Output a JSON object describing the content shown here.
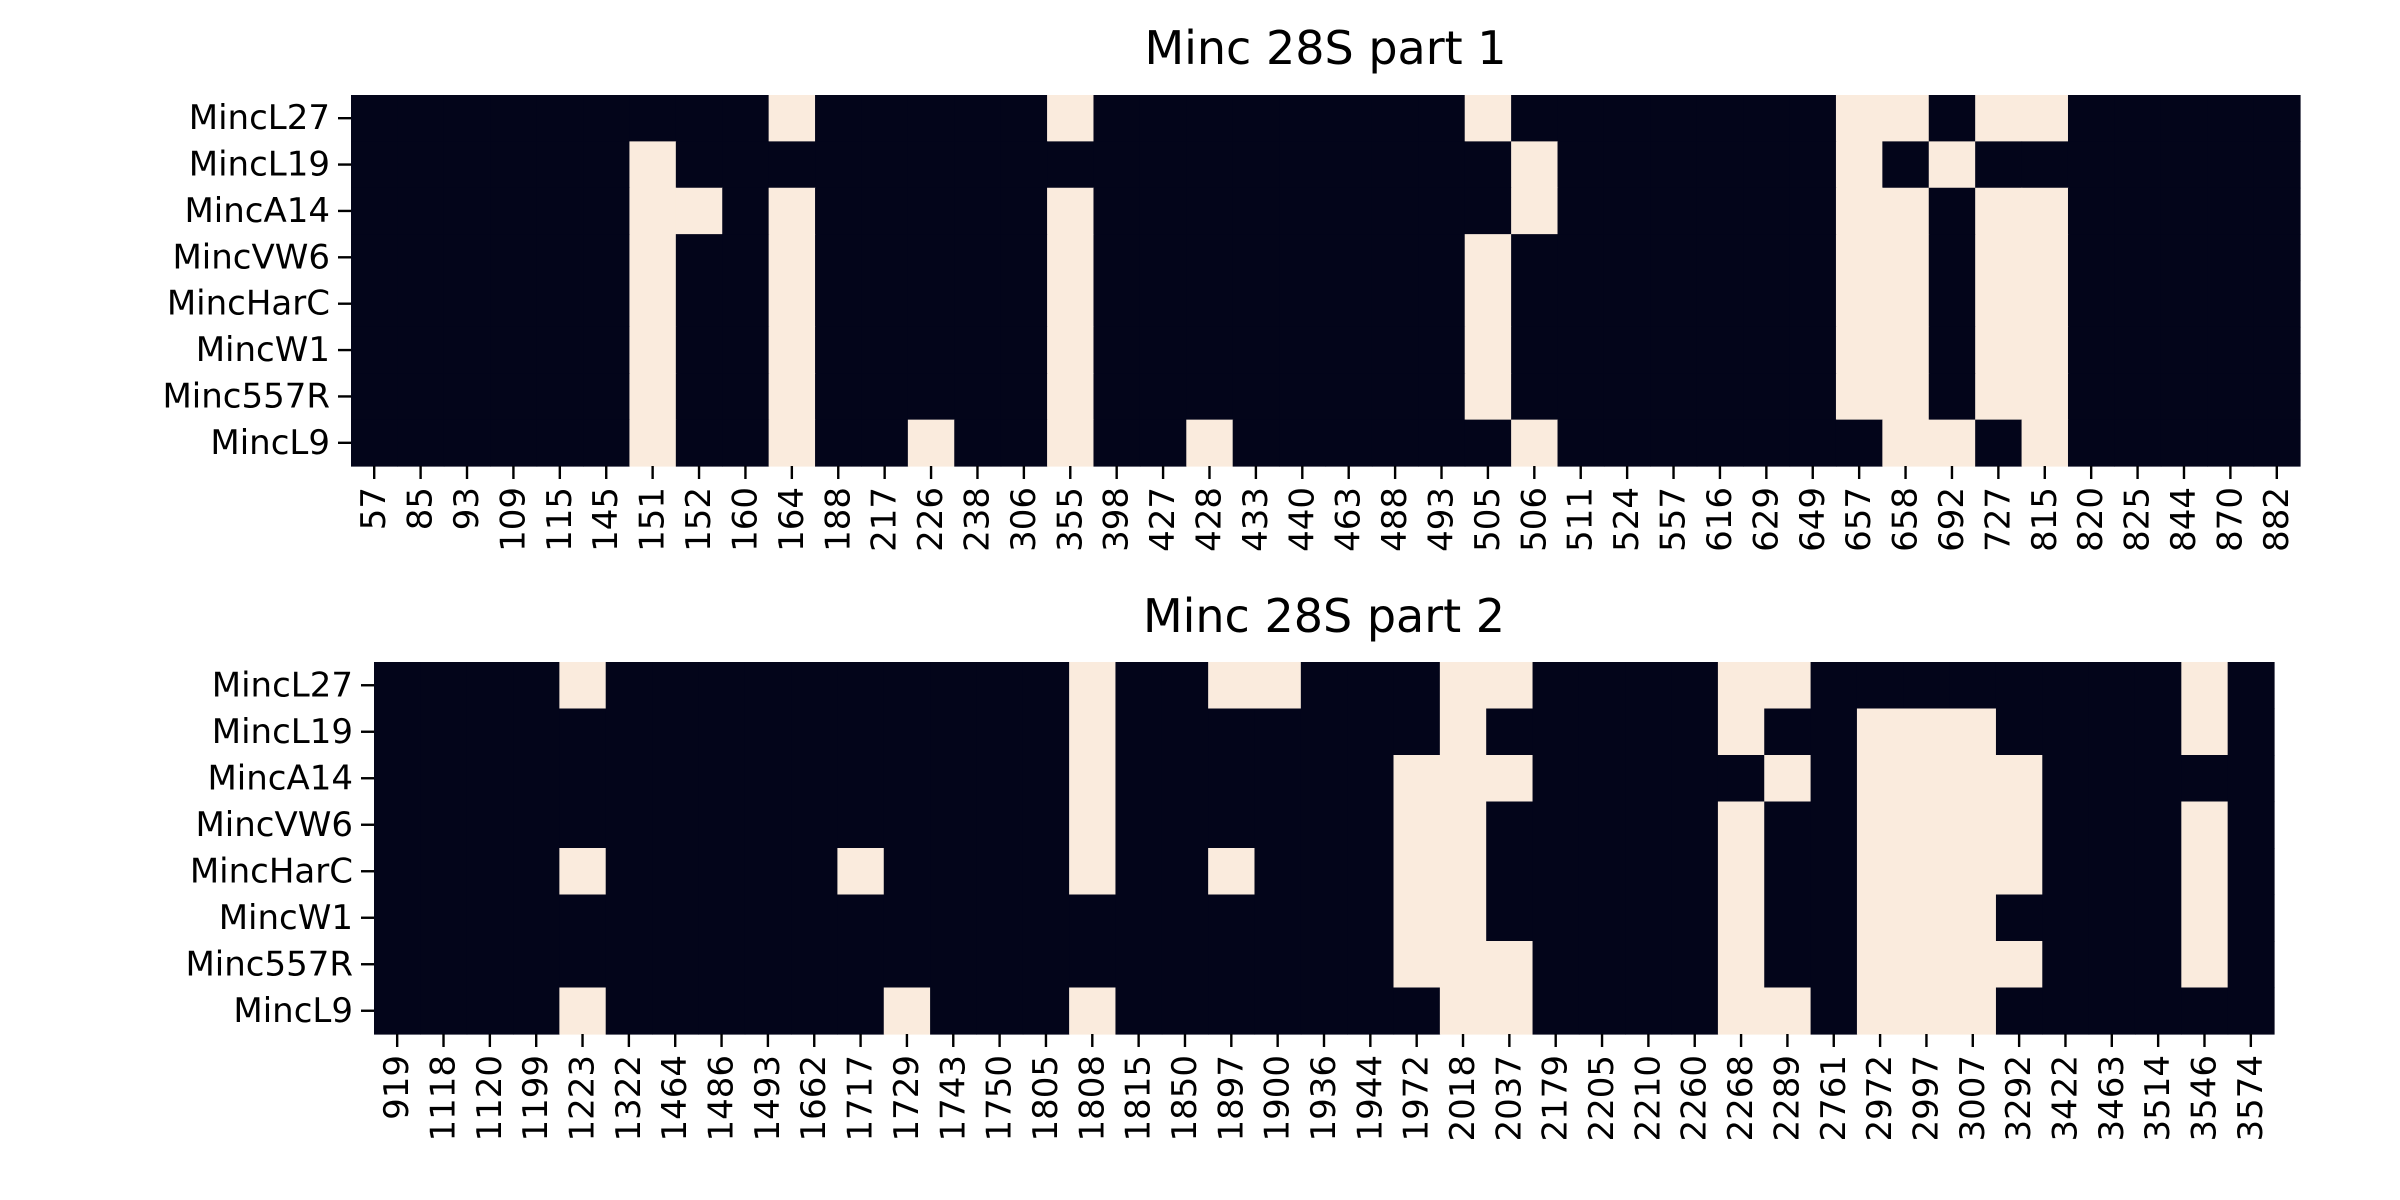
{
  "chart_data": [
    {
      "type": "heatmap",
      "title": "Minc 28S part 1",
      "rows": [
        "MincL27",
        "MincL19",
        "MincA14",
        "MincVW6",
        "MincHarC",
        "MincW1",
        "Minc557R",
        "MincL9"
      ],
      "columns": [
        "57",
        "85",
        "93",
        "109",
        "115",
        "145",
        "151",
        "152",
        "160",
        "164",
        "188",
        "217",
        "226",
        "238",
        "306",
        "355",
        "398",
        "427",
        "428",
        "433",
        "440",
        "463",
        "488",
        "493",
        "505",
        "506",
        "511",
        "524",
        "557",
        "616",
        "629",
        "649",
        "657",
        "658",
        "692",
        "727",
        "815",
        "820",
        "825",
        "844",
        "870",
        "882"
      ],
      "values": [
        [
          0,
          0,
          0,
          0,
          0,
          0,
          0,
          0,
          0,
          1,
          0,
          0,
          0,
          0,
          0,
          1,
          0,
          0,
          0,
          0,
          0,
          0,
          0,
          0,
          1,
          0,
          0,
          0,
          0,
          0,
          0,
          0,
          1,
          1,
          0,
          1,
          1,
          0,
          0,
          0,
          0,
          0
        ],
        [
          0,
          0,
          0,
          0,
          0,
          0,
          1,
          0,
          0,
          0,
          0,
          0,
          0,
          0,
          0,
          0,
          0,
          0,
          0,
          0,
          0,
          0,
          0,
          0,
          0,
          1,
          0,
          0,
          0,
          0,
          0,
          0,
          1,
          0,
          1,
          0,
          0,
          0,
          0,
          0,
          0,
          0
        ],
        [
          0,
          0,
          0,
          0,
          0,
          0,
          1,
          1,
          0,
          1,
          0,
          0,
          0,
          0,
          0,
          1,
          0,
          0,
          0,
          0,
          0,
          0,
          0,
          0,
          0,
          1,
          0,
          0,
          0,
          0,
          0,
          0,
          1,
          1,
          0,
          1,
          1,
          0,
          0,
          0,
          0,
          0
        ],
        [
          0,
          0,
          0,
          0,
          0,
          0,
          1,
          0,
          0,
          1,
          0,
          0,
          0,
          0,
          0,
          1,
          0,
          0,
          0,
          0,
          0,
          0,
          0,
          0,
          1,
          0,
          0,
          0,
          0,
          0,
          0,
          0,
          1,
          1,
          0,
          1,
          1,
          0,
          0,
          0,
          0,
          0
        ],
        [
          0,
          0,
          0,
          0,
          0,
          0,
          1,
          0,
          0,
          1,
          0,
          0,
          0,
          0,
          0,
          1,
          0,
          0,
          0,
          0,
          0,
          0,
          0,
          0,
          1,
          0,
          0,
          0,
          0,
          0,
          0,
          0,
          1,
          1,
          0,
          1,
          1,
          0,
          0,
          0,
          0,
          0
        ],
        [
          0,
          0,
          0,
          0,
          0,
          0,
          1,
          0,
          0,
          1,
          0,
          0,
          0,
          0,
          0,
          1,
          0,
          0,
          0,
          0,
          0,
          0,
          0,
          0,
          1,
          0,
          0,
          0,
          0,
          0,
          0,
          0,
          1,
          1,
          0,
          1,
          1,
          0,
          0,
          0,
          0,
          0
        ],
        [
          0,
          0,
          0,
          0,
          0,
          0,
          1,
          0,
          0,
          1,
          0,
          0,
          0,
          0,
          0,
          1,
          0,
          0,
          0,
          0,
          0,
          0,
          0,
          0,
          1,
          0,
          0,
          0,
          0,
          0,
          0,
          0,
          1,
          1,
          0,
          1,
          1,
          0,
          0,
          0,
          0,
          0
        ],
        [
          0,
          0,
          0,
          0,
          0,
          0,
          1,
          0,
          0,
          1,
          0,
          0,
          1,
          0,
          0,
          1,
          0,
          0,
          1,
          0,
          0,
          0,
          0,
          0,
          0,
          1,
          0,
          0,
          0,
          0,
          0,
          0,
          0,
          1,
          1,
          0,
          1,
          0,
          0,
          0,
          0,
          0
        ]
      ]
    },
    {
      "type": "heatmap",
      "title": "Minc 28S part 2",
      "rows": [
        "MincL27",
        "MincL19",
        "MincA14",
        "MincVW6",
        "MincHarC",
        "MincW1",
        "Minc557R",
        "MincL9"
      ],
      "columns": [
        "919",
        "1118",
        "1120",
        "1199",
        "1223",
        "1322",
        "1464",
        "1486",
        "1493",
        "1662",
        "1717",
        "1729",
        "1743",
        "1750",
        "1805",
        "1808",
        "1815",
        "1850",
        "1897",
        "1900",
        "1936",
        "1944",
        "1972",
        "2018",
        "2037",
        "2179",
        "2205",
        "2210",
        "2260",
        "2268",
        "2289",
        "2761",
        "2972",
        "2997",
        "3007",
        "3292",
        "3422",
        "3463",
        "3514",
        "3546",
        "3574"
      ],
      "values": [
        [
          0,
          0,
          0,
          0,
          1,
          0,
          0,
          0,
          0,
          0,
          0,
          0,
          0,
          0,
          0,
          1,
          0,
          0,
          1,
          1,
          0,
          0,
          0,
          1,
          1,
          0,
          0,
          0,
          0,
          1,
          1,
          0,
          0,
          0,
          0,
          0,
          0,
          0,
          0,
          1,
          0
        ],
        [
          0,
          0,
          0,
          0,
          0,
          0,
          0,
          0,
          0,
          0,
          0,
          0,
          0,
          0,
          0,
          1,
          0,
          0,
          0,
          0,
          0,
          0,
          0,
          1,
          0,
          0,
          0,
          0,
          0,
          1,
          0,
          0,
          1,
          1,
          1,
          0,
          0,
          0,
          0,
          1,
          0
        ],
        [
          0,
          0,
          0,
          0,
          0,
          0,
          0,
          0,
          0,
          0,
          0,
          0,
          0,
          0,
          0,
          1,
          0,
          0,
          0,
          0,
          0,
          0,
          1,
          1,
          1,
          0,
          0,
          0,
          0,
          0,
          1,
          0,
          1,
          1,
          1,
          1,
          0,
          0,
          0,
          0,
          0
        ],
        [
          0,
          0,
          0,
          0,
          0,
          0,
          0,
          0,
          0,
          0,
          0,
          0,
          0,
          0,
          0,
          1,
          0,
          0,
          0,
          0,
          0,
          0,
          1,
          1,
          0,
          0,
          0,
          0,
          0,
          1,
          0,
          0,
          1,
          1,
          1,
          1,
          0,
          0,
          0,
          1,
          0
        ],
        [
          0,
          0,
          0,
          0,
          1,
          0,
          0,
          0,
          0,
          0,
          1,
          0,
          0,
          0,
          0,
          1,
          0,
          0,
          1,
          0,
          0,
          0,
          1,
          1,
          0,
          0,
          0,
          0,
          0,
          1,
          0,
          0,
          1,
          1,
          1,
          1,
          0,
          0,
          0,
          1,
          0
        ],
        [
          0,
          0,
          0,
          0,
          0,
          0,
          0,
          0,
          0,
          0,
          0,
          0,
          0,
          0,
          0,
          0,
          0,
          0,
          0,
          0,
          0,
          0,
          1,
          1,
          0,
          0,
          0,
          0,
          0,
          1,
          0,
          0,
          1,
          1,
          1,
          0,
          0,
          0,
          0,
          1,
          0
        ],
        [
          0,
          0,
          0,
          0,
          0,
          0,
          0,
          0,
          0,
          0,
          0,
          0,
          0,
          0,
          0,
          0,
          0,
          0,
          0,
          0,
          0,
          0,
          1,
          1,
          1,
          0,
          0,
          0,
          0,
          1,
          0,
          0,
          1,
          1,
          1,
          1,
          0,
          0,
          0,
          1,
          0
        ],
        [
          0,
          0,
          0,
          0,
          1,
          0,
          0,
          0,
          0,
          0,
          0,
          1,
          0,
          0,
          0,
          1,
          0,
          0,
          0,
          0,
          0,
          0,
          0,
          1,
          1,
          0,
          0,
          0,
          0,
          1,
          1,
          0,
          1,
          1,
          1,
          0,
          0,
          0,
          0,
          0,
          0
        ]
      ]
    }
  ],
  "colors": {
    "low": "#03051a",
    "high": "#faebdd"
  }
}
